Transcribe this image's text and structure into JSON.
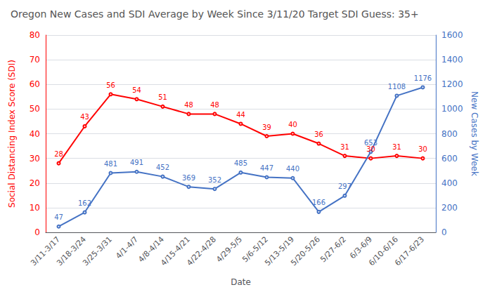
{
  "chart_data": {
    "type": "line",
    "title": "Oregon New Cases and SDI Average by Week Since 3/11/20 Target SDI Guess: 35+",
    "xlabel": "Date",
    "ylabel": "Social Distancing Index Score (SDI)",
    "y2label": "New Cases by Week",
    "categories": [
      "3/11-3/17",
      "3/18-3/24",
      "3/25-3/31",
      "4/1-4/7",
      "4/8-4/14",
      "4/15-4/21",
      "4/22-4/28",
      "4/29-5/5",
      "5/6-5/12",
      "5/13-5/19",
      "5/20-5/26",
      "5/27-6/2",
      "6/3-6/9",
      "6/10-6/16",
      "6/17-6/23"
    ],
    "series": [
      {
        "color": "#FF0000",
        "values": [
          28,
          43,
          56,
          54,
          51,
          48,
          48,
          44,
          39,
          40,
          36,
          31,
          30,
          31,
          30
        ]
      },
      {
        "color": "#4472C4",
        "axis": "y2",
        "values": [
          47,
          162,
          481,
          491,
          452,
          369,
          352,
          485,
          447,
          440,
          166,
          297,
          653,
          1108,
          1176
        ]
      }
    ],
    "ylim": [
      0,
      80
    ],
    "yticks": [
      0,
      10,
      20,
      30,
      40,
      50,
      60,
      70,
      80
    ],
    "y2lim": [
      0,
      1600
    ],
    "y2ticks": [
      0,
      200,
      400,
      600,
      800,
      1000,
      1200,
      1400,
      1600
    ],
    "grid": true,
    "data_labels": true
  }
}
